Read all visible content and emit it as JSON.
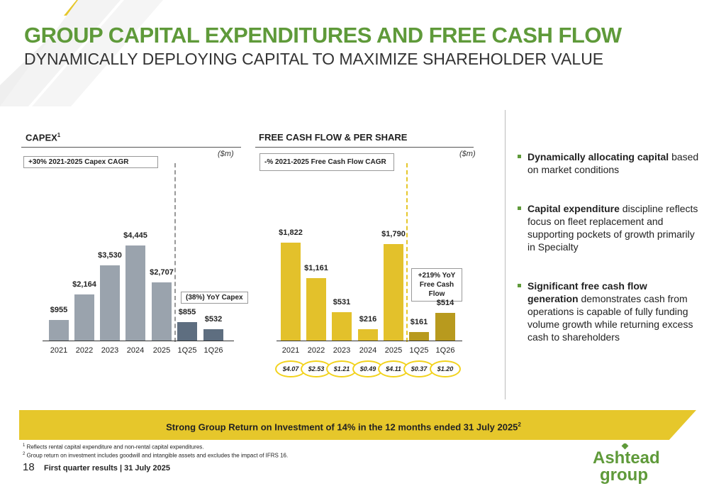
{
  "header": {
    "title": "GROUP CAPITAL EXPENDITURES AND FREE CASH FLOW",
    "subtitle": "DYNAMICALLY DEPLOYING CAPITAL TO MAXIMIZE SHAREHOLDER VALUE"
  },
  "colors": {
    "brand_green": "#5f9a3a",
    "brand_yellow": "#e6c72b",
    "capex_bar": "#9aa3ad",
    "capex_bar_quarter": "#5e6e80",
    "fcf_bar": "#e3c12b",
    "fcf_bar_quarter": "#b89a1e"
  },
  "capex": {
    "heading": "CAPEX",
    "heading_sup": "1",
    "unit": "($m)",
    "cagr_label": "+30% 2021-2025 Capex CAGR",
    "yoy_label": "(38%) YoY Capex"
  },
  "fcf": {
    "heading": "FREE CASH FLOW & PER SHARE",
    "unit": "($m)",
    "cagr_label": "-% 2021-2025 Free Cash Flow CAGR",
    "yoy_label": "+219% YoY Free Cash Flow"
  },
  "chart_data": [
    {
      "type": "bar",
      "title": "CAPEX",
      "categories": [
        "2021",
        "2022",
        "2023",
        "2024",
        "2025",
        "1Q25",
        "1Q26"
      ],
      "values": [
        955,
        2164,
        3530,
        4445,
        2707,
        855,
        532
      ],
      "value_labels": [
        "$955",
        "$2,164",
        "$3,530",
        "$4,445",
        "$2,707",
        "$855",
        "$532"
      ],
      "ylabel": "($m)",
      "ylim": [
        0,
        4445
      ],
      "grid": false
    },
    {
      "type": "bar",
      "title": "FREE CASH FLOW & PER SHARE",
      "categories": [
        "2021",
        "2022",
        "2023",
        "2024",
        "2025",
        "1Q25",
        "1Q26"
      ],
      "values": [
        1822,
        1161,
        531,
        216,
        1790,
        161,
        514
      ],
      "value_labels": [
        "$1,822",
        "$1,161",
        "$531",
        "$216",
        "$1,790",
        "$161",
        "$514"
      ],
      "per_share": [
        "$4.07",
        "$2.53",
        "$1.21",
        "$0.49",
        "$4.11",
        "$0.37",
        "$1.20"
      ],
      "ylabel": "($m)",
      "ylim": [
        0,
        1822
      ],
      "grid": false
    }
  ],
  "bullets": [
    {
      "bold": "Dynamically allocating capital",
      "rest": " based on market conditions"
    },
    {
      "bold": "Capital expenditure",
      "rest": " discipline reflects focus on fleet replacement and supporting pockets of growth primarily in Specialty"
    },
    {
      "bold": "Significant free cash flow generation",
      "rest": " demonstrates cash from operations is capable of fully funding volume growth while returning excess cash to shareholders"
    }
  ],
  "banner": {
    "text": "Strong Group Return on Investment of 14% in the 12 months ended 31 July 2025",
    "sup": "2"
  },
  "footnotes": [
    {
      "sup": "1",
      "text": " Reflects rental capital expenditure and non-rental capital expenditures."
    },
    {
      "sup": "2",
      "text": " Group return on investment includes goodwill and intangible assets and excludes the impact of IFRS 16."
    }
  ],
  "footer": {
    "page_number": "18",
    "label": "First quarter results | 31 July 2025"
  },
  "logo": {
    "line1": "Ashtead",
    "line2": "group"
  }
}
